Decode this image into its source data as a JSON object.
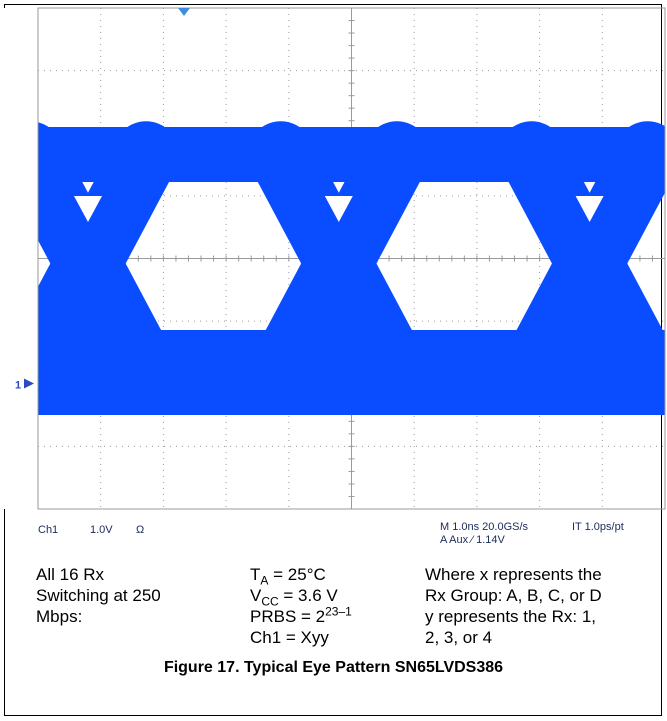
{
  "chart_data": {
    "type": "line",
    "title": "",
    "xlabel": "",
    "ylabel": "",
    "timebase_ns_per_div": 1.0,
    "volts_per_div": 1.0,
    "x_divisions": 10,
    "y_divisions": 8,
    "eye_period_ns": 4.0,
    "signal_color": "#0a4cff",
    "grid_color": "#9a9a9a",
    "ground_marker": "1"
  },
  "status_bar": {
    "channel": "Ch1",
    "scale": "1.0V",
    "coupling": "Ω",
    "timebase": "M 1.0ns 20.0GS/s",
    "interp": "IT 1.0ps/pt",
    "trigger": "A  Aux  ⁄  1.14V"
  },
  "notes": {
    "col1": [
      "All 16 Rx",
      "Switching at 250",
      "Mbps:"
    ],
    "ta_label": "T",
    "ta_sub": "A",
    "ta_val": " = 25°C",
    "vcc_label": "V",
    "vcc_sub": "CC",
    "vcc_val": " = 3.6 V",
    "prbs_label": "PRBS = 2",
    "prbs_sup": "23–1",
    "ch1": "Ch1 = Xyy",
    "col3": [
      "Where x represents the",
      "Rx Group: A, B, C, or D",
      "y represents the Rx: 1,",
      "2, 3, or 4"
    ]
  },
  "caption": "Figure 17. Typical Eye Pattern SN65LVDS386"
}
